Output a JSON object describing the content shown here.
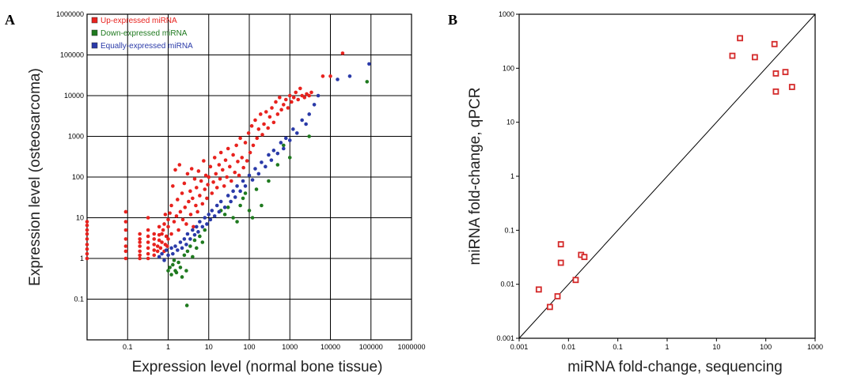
{
  "panel_letters": {
    "a": "A",
    "b": "B"
  },
  "chart_data": [
    {
      "type": "scatter",
      "panel": "A",
      "xlabel": "Expression level (normal bone tissue)",
      "ylabel": "Expression level (osteosarcoma)",
      "x_scale": "log",
      "y_scale": "log",
      "xlim": [
        0.01,
        1000000
      ],
      "ylim": [
        0.01,
        1000000
      ],
      "x_ticks": [
        "0.1",
        "1",
        "10",
        "100",
        "1000",
        "10000",
        "100000",
        "1000000"
      ],
      "y_ticks": [
        "0.1",
        "1",
        "10",
        "100",
        "1000",
        "10000",
        "100000",
        "1000000"
      ],
      "grid": true,
      "legend_position": "top-left",
      "series": [
        {
          "name": "Up-expressed miRNA",
          "color": "#e8221e",
          "points": [
            [
              0.01,
              1
            ],
            [
              0.01,
              1.3
            ],
            [
              0.01,
              1.7
            ],
            [
              0.01,
              2.2
            ],
            [
              0.01,
              3
            ],
            [
              0.01,
              4
            ],
            [
              0.01,
              5
            ],
            [
              0.01,
              6.5
            ],
            [
              0.01,
              8
            ],
            [
              0.09,
              1
            ],
            [
              0.09,
              1.5
            ],
            [
              0.09,
              2
            ],
            [
              0.09,
              3
            ],
            [
              0.09,
              5
            ],
            [
              0.09,
              8
            ],
            [
              0.09,
              14
            ],
            [
              0.2,
              1
            ],
            [
              0.2,
              1.2
            ],
            [
              0.2,
              1.5
            ],
            [
              0.2,
              2
            ],
            [
              0.2,
              2.5
            ],
            [
              0.2,
              3
            ],
            [
              0.2,
              4
            ],
            [
              0.32,
              1
            ],
            [
              0.32,
              1.3
            ],
            [
              0.32,
              1.8
            ],
            [
              0.32,
              2.5
            ],
            [
              0.32,
              3.5
            ],
            [
              0.32,
              5
            ],
            [
              0.32,
              10
            ],
            [
              0.45,
              1.2
            ],
            [
              0.45,
              1.6
            ],
            [
              0.45,
              2.2
            ],
            [
              0.45,
              3
            ],
            [
              0.45,
              4
            ],
            [
              0.55,
              1.5
            ],
            [
              0.55,
              2
            ],
            [
              0.6,
              2.8
            ],
            [
              0.6,
              3.8
            ],
            [
              0.6,
              6
            ],
            [
              0.65,
              1.8
            ],
            [
              0.7,
              2.5
            ],
            [
              0.7,
              4
            ],
            [
              0.75,
              5
            ],
            [
              0.8,
              1.5
            ],
            [
              0.8,
              7
            ],
            [
              0.85,
              2.2
            ],
            [
              0.85,
              12
            ],
            [
              0.9,
              3.5
            ],
            [
              0.95,
              2
            ],
            [
              1,
              3
            ],
            [
              1,
              6
            ],
            [
              1,
              9
            ],
            [
              1.1,
              13
            ],
            [
              1.2,
              4
            ],
            [
              1.2,
              20
            ],
            [
              1.3,
              60
            ],
            [
              1.4,
              8
            ],
            [
              1.5,
              150
            ],
            [
              1.6,
              11
            ],
            [
              1.7,
              28
            ],
            [
              1.8,
              5
            ],
            [
              1.9,
              200
            ],
            [
              2,
              14
            ],
            [
              2.2,
              40
            ],
            [
              2.3,
              9
            ],
            [
              2.5,
              70
            ],
            [
              2.6,
              18
            ],
            [
              2.8,
              7
            ],
            [
              3,
              120
            ],
            [
              3.2,
              25
            ],
            [
              3.5,
              45
            ],
            [
              3.6,
              12
            ],
            [
              3.8,
              160
            ],
            [
              4,
              30
            ],
            [
              4.2,
              6
            ],
            [
              4.5,
              90
            ],
            [
              4.8,
              20
            ],
            [
              5,
              55
            ],
            [
              5.3,
              14
            ],
            [
              5.6,
              140
            ],
            [
              6,
              35
            ],
            [
              6.5,
              80
            ],
            [
              7,
              22
            ],
            [
              7.5,
              250
            ],
            [
              8,
              50
            ],
            [
              8.5,
              110
            ],
            [
              9,
              30
            ],
            [
              9.5,
              65
            ],
            [
              10,
              100
            ],
            [
              11,
              180
            ],
            [
              12,
              40
            ],
            [
              13,
              75
            ],
            [
              14,
              300
            ],
            [
              15,
              120
            ],
            [
              16,
              55
            ],
            [
              18,
              200
            ],
            [
              19,
              90
            ],
            [
              20,
              400
            ],
            [
              22,
              150
            ],
            [
              24,
              60
            ],
            [
              26,
              260
            ],
            [
              28,
              100
            ],
            [
              30,
              500
            ],
            [
              33,
              180
            ],
            [
              36,
              80
            ],
            [
              40,
              350
            ],
            [
              44,
              130
            ],
            [
              48,
              600
            ],
            [
              52,
              240
            ],
            [
              56,
              110
            ],
            [
              60,
              900
            ],
            [
              66,
              300
            ],
            [
              72,
              170
            ],
            [
              80,
              700
            ],
            [
              88,
              250
            ],
            [
              96,
              1200
            ],
            [
              105,
              400
            ],
            [
              115,
              1800
            ],
            [
              125,
              600
            ],
            [
              140,
              2500
            ],
            [
              155,
              900
            ],
            [
              170,
              1500
            ],
            [
              190,
              3500
            ],
            [
              210,
              1100
            ],
            [
              230,
              2000
            ],
            [
              260,
              4000
            ],
            [
              290,
              1600
            ],
            [
              320,
              3000
            ],
            [
              360,
              5000
            ],
            [
              400,
              2200
            ],
            [
              450,
              7000
            ],
            [
              500,
              3500
            ],
            [
              560,
              9000
            ],
            [
              620,
              4500
            ],
            [
              700,
              6000
            ],
            [
              800,
              8000
            ],
            [
              900,
              5000
            ],
            [
              1000,
              10000
            ],
            [
              1100,
              7000
            ],
            [
              1250,
              9000
            ],
            [
              1400,
              12000
            ],
            [
              1600,
              8000
            ],
            [
              1800,
              15000
            ],
            [
              2000,
              10000
            ],
            [
              2300,
              9000
            ],
            [
              2600,
              11000
            ],
            [
              3000,
              10000
            ],
            [
              3400,
              12000
            ],
            [
              6500,
              30000
            ],
            [
              10000,
              30000
            ],
            [
              20000,
              110000
            ]
          ]
        },
        {
          "name": "Down-expressed miRNA",
          "color": "#1f7a1f",
          "points": [
            [
              1,
              0.5
            ],
            [
              1.1,
              0.6
            ],
            [
              1.2,
              0.4
            ],
            [
              1.3,
              0.7
            ],
            [
              1.4,
              0.9
            ],
            [
              1.5,
              0.5
            ],
            [
              1.6,
              0.45
            ],
            [
              1.8,
              0.8
            ],
            [
              2,
              0.6
            ],
            [
              2.2,
              0.35
            ],
            [
              2.5,
              1.2
            ],
            [
              2.8,
              0.5
            ],
            [
              2.9,
              0.07
            ],
            [
              3,
              1.5
            ],
            [
              3.5,
              2
            ],
            [
              4,
              1.1
            ],
            [
              4.5,
              2.8
            ],
            [
              5,
              1.8
            ],
            [
              6,
              3.5
            ],
            [
              7,
              2.5
            ],
            [
              8,
              5
            ],
            [
              20,
              15
            ],
            [
              25,
              12
            ],
            [
              30,
              18
            ],
            [
              40,
              10
            ],
            [
              50,
              8
            ],
            [
              60,
              20
            ],
            [
              70,
              30
            ],
            [
              80,
              40
            ],
            [
              100,
              15
            ],
            [
              120,
              10
            ],
            [
              150,
              50
            ],
            [
              200,
              20
            ],
            [
              300,
              80
            ],
            [
              500,
              200
            ],
            [
              700,
              600
            ],
            [
              1000,
              300
            ],
            [
              3000,
              1000
            ],
            [
              80000,
              22000
            ]
          ]
        },
        {
          "name": "Equally-expressed miRNA",
          "color": "#2a3aa8",
          "points": [
            [
              0.6,
              1.1
            ],
            [
              0.7,
              1.3
            ],
            [
              0.8,
              0.9
            ],
            [
              0.9,
              1.6
            ],
            [
              1,
              1.2
            ],
            [
              1.2,
              1.8
            ],
            [
              1.3,
              1.3
            ],
            [
              1.5,
              2
            ],
            [
              1.7,
              1.6
            ],
            [
              2,
              2.5
            ],
            [
              2.2,
              1.8
            ],
            [
              2.5,
              3
            ],
            [
              2.8,
              2.2
            ],
            [
              3,
              4
            ],
            [
              3.5,
              3
            ],
            [
              4,
              5
            ],
            [
              4.5,
              3.8
            ],
            [
              5,
              6
            ],
            [
              5.5,
              4.5
            ],
            [
              6,
              8
            ],
            [
              7,
              6
            ],
            [
              8,
              10
            ],
            [
              9,
              7
            ],
            [
              10,
              12
            ],
            [
              11,
              9
            ],
            [
              12,
              15
            ],
            [
              14,
              11
            ],
            [
              16,
              20
            ],
            [
              18,
              14
            ],
            [
              20,
              25
            ],
            [
              25,
              18
            ],
            [
              30,
              35
            ],
            [
              35,
              25
            ],
            [
              40,
              45
            ],
            [
              45,
              32
            ],
            [
              50,
              60
            ],
            [
              60,
              45
            ],
            [
              70,
              80
            ],
            [
              80,
              60
            ],
            [
              100,
              110
            ],
            [
              120,
              85
            ],
            [
              140,
              160
            ],
            [
              170,
              120
            ],
            [
              200,
              230
            ],
            [
              250,
              180
            ],
            [
              300,
              350
            ],
            [
              350,
              260
            ],
            [
              400,
              450
            ],
            [
              500,
              380
            ],
            [
              600,
              700
            ],
            [
              700,
              500
            ],
            [
              800,
              900
            ],
            [
              1000,
              800
            ],
            [
              1200,
              1500
            ],
            [
              1500,
              1200
            ],
            [
              2000,
              2500
            ],
            [
              2500,
              2000
            ],
            [
              3000,
              3500
            ],
            [
              4000,
              6000
            ],
            [
              5000,
              10000
            ],
            [
              15000,
              25000
            ],
            [
              30000,
              30000
            ],
            [
              90000,
              60000
            ]
          ]
        }
      ]
    },
    {
      "type": "scatter",
      "panel": "B",
      "xlabel": "miRNA fold-change, sequencing",
      "ylabel": "miRNA fold-change, qPCR",
      "x_scale": "log",
      "y_scale": "log",
      "xlim": [
        0.001,
        1000
      ],
      "ylim": [
        0.001,
        1000
      ],
      "x_ticks": [
        "0.001",
        "0.01",
        "0.1",
        "1",
        "10",
        "100",
        "1000"
      ],
      "y_ticks": [
        "0.001",
        "0.01",
        "0.1",
        "1",
        "10",
        "100",
        "1000"
      ],
      "grid": false,
      "reference_line": "y = x",
      "marker_color": "#d42a2a",
      "points": [
        [
          0.0025,
          0.008
        ],
        [
          0.0042,
          0.0038
        ],
        [
          0.006,
          0.006
        ],
        [
          0.007,
          0.055
        ],
        [
          0.007,
          0.025
        ],
        [
          0.014,
          0.012
        ],
        [
          0.018,
          0.035
        ],
        [
          0.021,
          0.032
        ],
        [
          21,
          170
        ],
        [
          30,
          360
        ],
        [
          60,
          160
        ],
        [
          150,
          280
        ],
        [
          160,
          80
        ],
        [
          160,
          37
        ],
        [
          250,
          85
        ],
        [
          340,
          45
        ]
      ]
    }
  ]
}
